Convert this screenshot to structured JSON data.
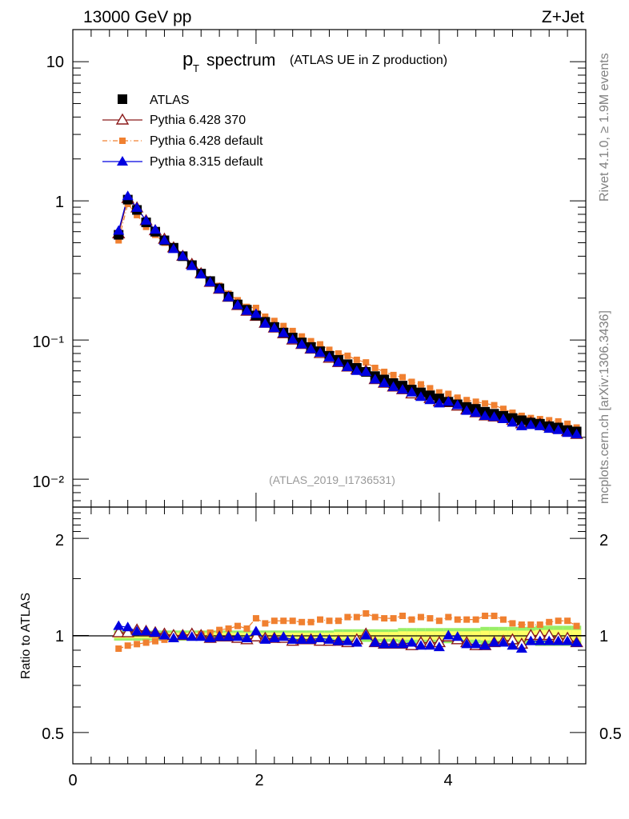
{
  "header": {
    "energy_label": "13000 GeV pp",
    "process_label": "Z+Jet"
  },
  "side_labels": {
    "rivet": "Rivet 4.1.0, ≥ 1.9M events",
    "mcplots": "mcplots.cern.ch [arXiv:1306.3436]"
  },
  "colors": {
    "atlas": "#000000",
    "pythia6_370": "#8b1a1a",
    "pythia6_default": "#f08030",
    "pythia8_default": "#0000e0",
    "band_inner": "#ffff66",
    "band_outer": "#99ee66"
  },
  "chart_data": [
    {
      "type": "scatter",
      "title_main": "p",
      "title_sub": "T",
      "title_rest": "spectrum",
      "subtitle": "(ATLAS UE in Z production)",
      "analysis_tag": "(ATLAS_2019_I1736531)",
      "yscale": "log",
      "xlim": [
        0,
        5.6
      ],
      "ylim": [
        0.0063,
        17
      ],
      "y_tick_labels": [
        "10⁻²",
        "10⁻¹",
        "1",
        "10"
      ],
      "x": [
        0.5,
        0.6,
        0.7,
        0.8,
        0.9,
        1.0,
        1.1,
        1.2,
        1.3,
        1.4,
        1.5,
        1.6,
        1.7,
        1.8,
        1.9,
        2.0,
        2.1,
        2.2,
        2.3,
        2.4,
        2.5,
        2.6,
        2.7,
        2.8,
        2.9,
        3.0,
        3.1,
        3.2,
        3.3,
        3.4,
        3.5,
        3.6,
        3.7,
        3.8,
        3.9,
        4.0,
        4.1,
        4.2,
        4.3,
        4.4,
        4.5,
        4.6,
        4.7,
        4.8,
        4.9,
        5.0,
        5.1,
        5.2,
        5.3,
        5.4,
        5.5
      ],
      "series": [
        {
          "name": "ATLAS",
          "marker": "square",
          "values": [
            0.57,
            1.02,
            0.86,
            0.7,
            0.6,
            0.52,
            0.46,
            0.4,
            0.345,
            0.3,
            0.265,
            0.235,
            0.205,
            0.18,
            0.165,
            0.15,
            0.135,
            0.124,
            0.113,
            0.104,
            0.096,
            0.089,
            0.083,
            0.077,
            0.072,
            0.067,
            0.063,
            0.059,
            0.055,
            0.052,
            0.049,
            0.047,
            0.044,
            0.042,
            0.04,
            0.038,
            0.036,
            0.0345,
            0.033,
            0.032,
            0.0305,
            0.0295,
            0.0285,
            0.0275,
            0.0265,
            0.0255,
            0.025,
            0.024,
            0.0235,
            0.0225,
            0.022
          ]
        },
        {
          "name": "Pythia 6.428 370",
          "marker": "triangle-open",
          "values": [
            0.58,
            1.04,
            0.89,
            0.72,
            0.61,
            0.53,
            0.46,
            0.4,
            0.35,
            0.3,
            0.26,
            0.232,
            0.203,
            0.177,
            0.161,
            0.148,
            0.132,
            0.122,
            0.111,
            0.1,
            0.093,
            0.086,
            0.08,
            0.074,
            0.069,
            0.064,
            0.061,
            0.06,
            0.052,
            0.049,
            0.046,
            0.044,
            0.041,
            0.04,
            0.038,
            0.036,
            0.0355,
            0.0335,
            0.0315,
            0.03,
            0.0285,
            0.028,
            0.0275,
            0.0265,
            0.025,
            0.0255,
            0.025,
            0.024,
            0.023,
            0.022,
            0.021
          ]
        },
        {
          "name": "Pythia 6.428 default",
          "marker": "square-small",
          "values": [
            0.52,
            0.95,
            0.79,
            0.65,
            0.57,
            0.5,
            0.45,
            0.4,
            0.345,
            0.305,
            0.27,
            0.245,
            0.215,
            0.193,
            0.173,
            0.17,
            0.147,
            0.137,
            0.126,
            0.116,
            0.106,
            0.098,
            0.093,
            0.085,
            0.08,
            0.077,
            0.072,
            0.069,
            0.063,
            0.059,
            0.056,
            0.054,
            0.05,
            0.048,
            0.045,
            0.042,
            0.041,
            0.0385,
            0.037,
            0.036,
            0.035,
            0.034,
            0.032,
            0.03,
            0.0285,
            0.0275,
            0.027,
            0.0265,
            0.026,
            0.025,
            0.0235
          ]
        },
        {
          "name": "Pythia 8.315 default",
          "marker": "triangle",
          "values": [
            0.61,
            1.08,
            0.89,
            0.72,
            0.62,
            0.52,
            0.45,
            0.4,
            0.34,
            0.296,
            0.26,
            0.232,
            0.203,
            0.178,
            0.162,
            0.154,
            0.131,
            0.122,
            0.112,
            0.101,
            0.093,
            0.086,
            0.081,
            0.075,
            0.069,
            0.064,
            0.06,
            0.059,
            0.052,
            0.049,
            0.046,
            0.044,
            0.042,
            0.039,
            0.037,
            0.035,
            0.036,
            0.034,
            0.031,
            0.03,
            0.0285,
            0.028,
            0.027,
            0.0255,
            0.024,
            0.0245,
            0.024,
            0.023,
            0.0225,
            0.0215,
            0.021
          ]
        }
      ],
      "legend": [
        "ATLAS",
        "Pythia 6.428 370",
        "Pythia 6.428 default",
        "Pythia 8.315 default"
      ],
      "legend_position": "top-left"
    },
    {
      "type": "scatter",
      "ylabel": "Ratio to ATLAS",
      "yscale": "log",
      "xlim": [
        0,
        5.6
      ],
      "ylim": [
        0.4,
        2.5
      ],
      "x_tick_labels": [
        "0",
        "2",
        "4"
      ],
      "y_tick_labels": [
        "0.5",
        "1",
        "2"
      ],
      "reference": 1,
      "band_half_width": [
        0.02,
        0.02,
        0.02,
        0.02,
        0.02,
        0.02,
        0.02,
        0.02,
        0.02,
        0.02,
        0.02,
        0.02,
        0.02,
        0.02,
        0.02,
        0.02,
        0.02,
        0.02,
        0.02,
        0.02,
        0.02,
        0.02,
        0.02,
        0.02,
        0.025,
        0.025,
        0.025,
        0.025,
        0.025,
        0.025,
        0.025,
        0.03,
        0.03,
        0.03,
        0.03,
        0.03,
        0.03,
        0.03,
        0.03,
        0.03,
        0.035,
        0.035,
        0.035,
        0.035,
        0.035,
        0.035,
        0.04,
        0.04,
        0.04,
        0.04,
        0.04
      ],
      "series": [
        {
          "name": "Pythia 6.428 370",
          "values": [
            1.02,
            1.02,
            1.04,
            1.03,
            1.02,
            1.01,
            1.0,
            1.0,
            1.01,
            1.0,
            0.98,
            0.99,
            0.99,
            0.98,
            0.97,
            0.99,
            0.98,
            0.98,
            0.98,
            0.96,
            0.97,
            0.97,
            0.96,
            0.96,
            0.96,
            0.95,
            0.97,
            1.01,
            0.95,
            0.94,
            0.94,
            0.94,
            0.93,
            0.95,
            0.95,
            0.95,
            0.99,
            0.97,
            0.95,
            0.93,
            0.93,
            0.95,
            0.96,
            0.97,
            0.94,
            1.0,
            1.0,
            1.0,
            0.98,
            0.98,
            0.95
          ]
        },
        {
          "name": "Pythia 6.428 default",
          "values": [
            0.91,
            0.93,
            0.94,
            0.95,
            0.96,
            0.97,
            0.98,
            1.0,
            1.0,
            1.01,
            1.02,
            1.04,
            1.05,
            1.07,
            1.05,
            1.13,
            1.09,
            1.11,
            1.11,
            1.11,
            1.1,
            1.1,
            1.12,
            1.11,
            1.11,
            1.14,
            1.14,
            1.17,
            1.14,
            1.13,
            1.13,
            1.15,
            1.12,
            1.14,
            1.13,
            1.11,
            1.14,
            1.12,
            1.12,
            1.12,
            1.15,
            1.15,
            1.12,
            1.09,
            1.08,
            1.08,
            1.08,
            1.1,
            1.11,
            1.11,
            1.07
          ]
        },
        {
          "name": "Pythia 8.315 default",
          "values": [
            1.07,
            1.06,
            1.03,
            1.03,
            1.02,
            1.0,
            0.98,
            1.0,
            0.99,
            0.99,
            0.98,
            0.99,
            0.99,
            0.99,
            0.98,
            1.03,
            0.97,
            0.98,
            0.99,
            0.97,
            0.97,
            0.97,
            0.98,
            0.97,
            0.96,
            0.96,
            0.95,
            1.0,
            0.95,
            0.94,
            0.94,
            0.94,
            0.95,
            0.93,
            0.93,
            0.92,
            1.0,
            0.99,
            0.94,
            0.94,
            0.93,
            0.95,
            0.95,
            0.93,
            0.91,
            0.96,
            0.96,
            0.96,
            0.96,
            0.96,
            0.95
          ]
        }
      ]
    }
  ]
}
